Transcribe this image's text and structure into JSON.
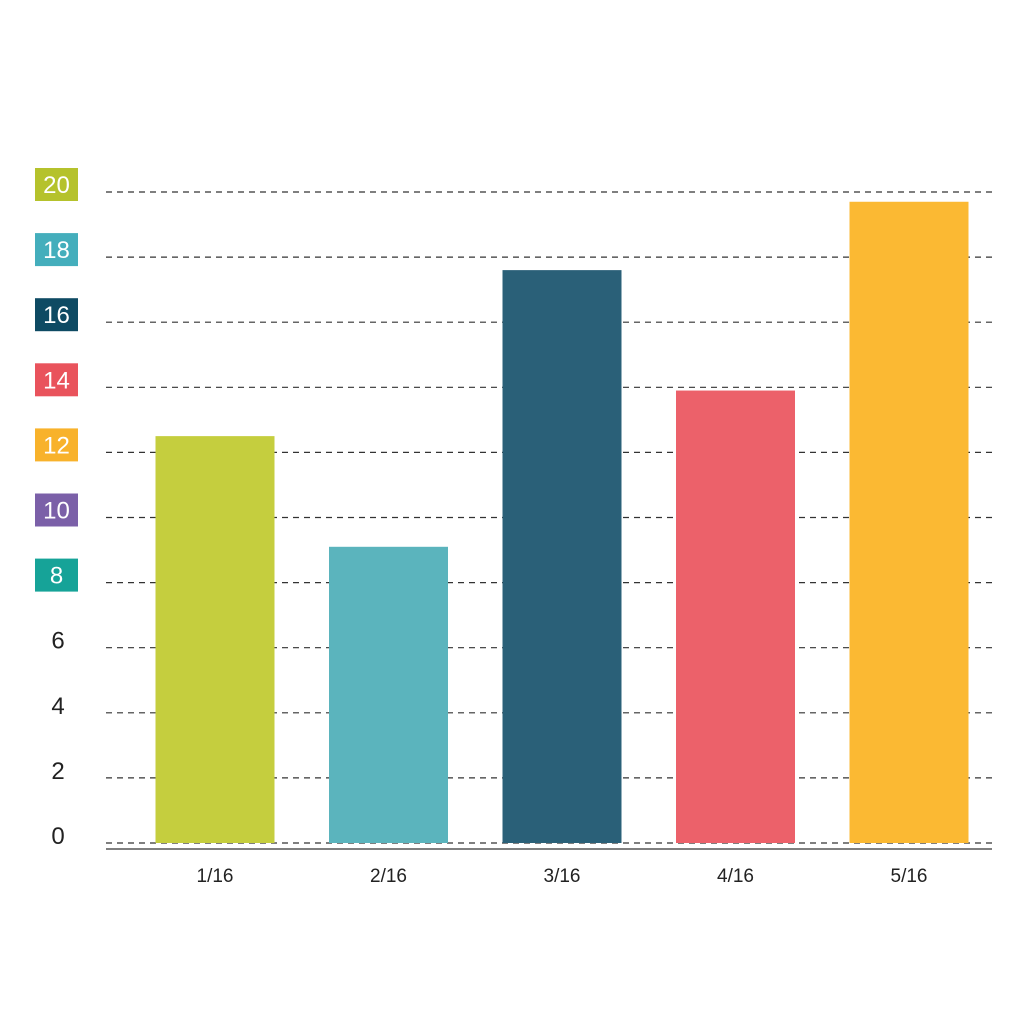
{
  "chart_data": {
    "type": "bar",
    "categories": [
      "1/16",
      "2/16",
      "3/16",
      "4/16",
      "5/16"
    ],
    "values": [
      12.5,
      9.1,
      17.6,
      13.9,
      19.7
    ],
    "bar_colors": [
      "#C5CE3E",
      "#5BB4BD",
      "#2A6078",
      "#EC616A",
      "#FBB933"
    ],
    "ylim": [
      0,
      20
    ],
    "yticks": [
      0,
      2,
      4,
      6,
      8,
      10,
      12,
      14,
      16,
      18,
      20
    ],
    "ytick_badge_colors": {
      "8": "#16A398",
      "10": "#7B60A8",
      "12": "#F8B22B",
      "14": "#E9535C",
      "16": "#0E4A63",
      "18": "#44AEBC",
      "20": "#B5C22C"
    },
    "grid": true,
    "title": "",
    "xlabel": "",
    "ylabel": ""
  }
}
